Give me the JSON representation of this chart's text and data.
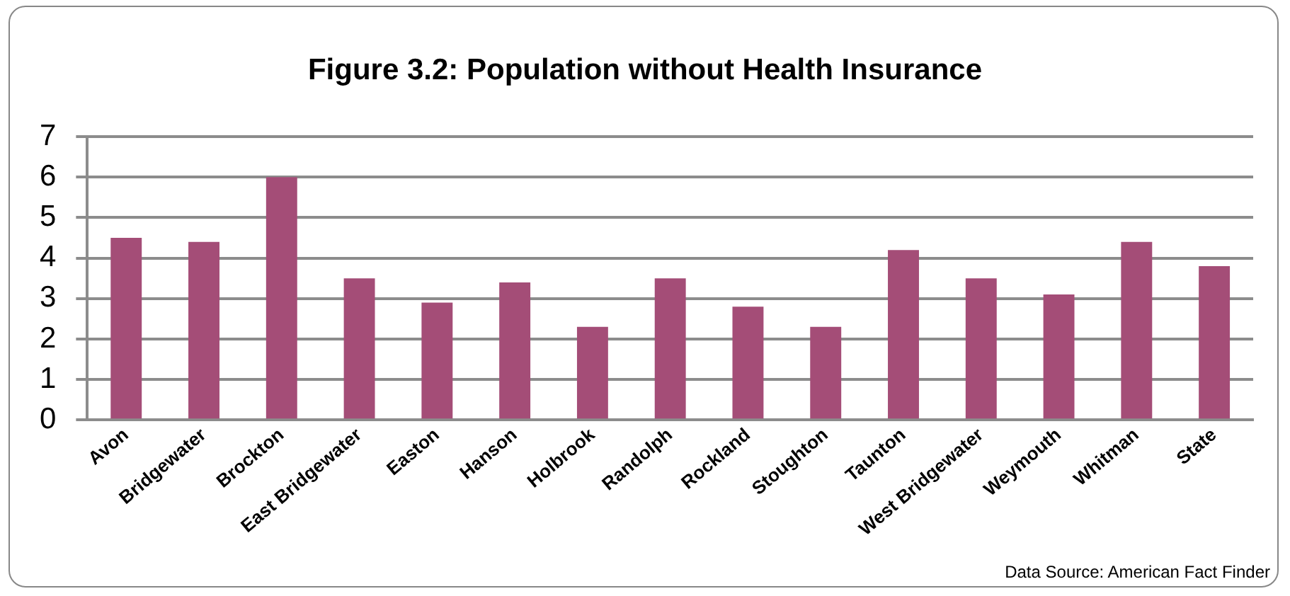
{
  "chart_data": {
    "type": "bar",
    "title": "Figure 3.2: Population without Health Insurance",
    "categories": [
      "Avon",
      "Bridgewater",
      "Brockton",
      "East Bridgewater",
      "Easton",
      "Hanson",
      "Holbrook",
      "Randolph",
      "Rockland",
      "Stoughton",
      "Taunton",
      "West Bridgewater",
      "Weymouth",
      "Whitman",
      "State"
    ],
    "values": [
      4.5,
      4.4,
      6.0,
      3.5,
      2.9,
      3.4,
      2.3,
      3.5,
      2.8,
      2.3,
      4.2,
      3.5,
      3.1,
      4.4,
      3.8
    ],
    "color": "#a44d77",
    "ylim": [
      0,
      7
    ],
    "yticks": [
      0,
      1,
      2,
      3,
      4,
      5,
      6,
      7
    ],
    "grid": "y",
    "annotations": [
      "Data Source: American Fact Finder"
    ]
  }
}
